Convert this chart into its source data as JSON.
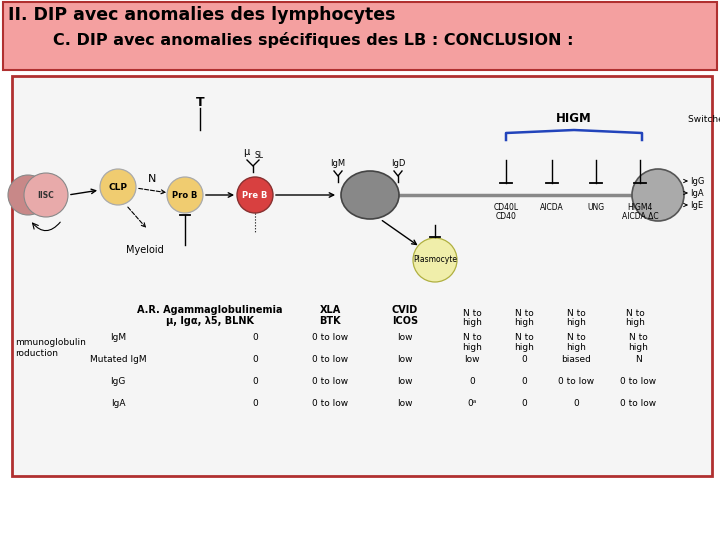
{
  "title_line1": "II. DIP avec anomalies des lymphocytes",
  "title_line2": "        C. DIP avec anomalies spécifiques des LB : CONCLUSION :",
  "title_bg": "#f4a0a0",
  "title_border": "#b03030",
  "main_border": "#b03030",
  "main_bg": "#f5f5f5",
  "cell_colors": {
    "IISC_inner": "#e8aaaa",
    "IISC_outer": "#c88888",
    "CLP": "#f0cc70",
    "ProB": "#f0cc70",
    "PreB": "#d84040",
    "Bmature": "#888888",
    "Plasma": "#f0eeaa",
    "Switched": "#aaaaaa"
  },
  "higm_color": "#2244bb",
  "table_rows": [
    [
      "IgM",
      "0",
      "0 to low",
      "low",
      "N to\nhigh",
      "N to\nhigh",
      "N to\nhigh",
      "N to\nhigh"
    ],
    [
      "Mutated IgM",
      "0",
      "0 to low",
      "low",
      "low",
      "0",
      "biased",
      "N"
    ],
    [
      "IgG",
      "0",
      "0 to low",
      "low",
      "0",
      "0",
      "0 to low",
      "0 to low"
    ],
    [
      "IgA",
      "0",
      "0 to low",
      "low",
      "0ᵃ",
      "0",
      "0",
      "0 to low"
    ]
  ]
}
